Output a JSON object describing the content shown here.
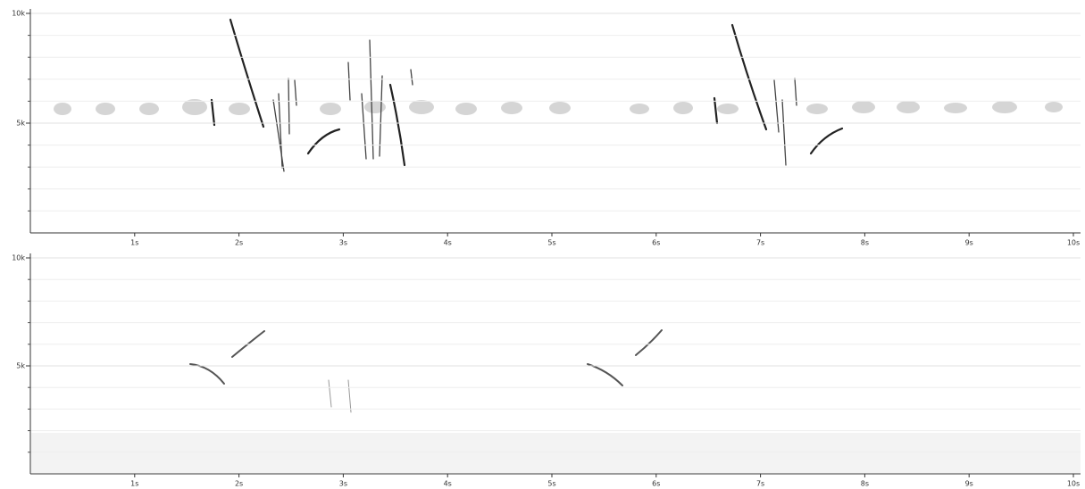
{
  "chart_data": [
    {
      "type": "spectrogram",
      "xlim": [
        0,
        10
      ],
      "ylim": [
        0,
        10000
      ],
      "xticks": [
        {
          "value": 1,
          "label": "1s"
        },
        {
          "value": 2,
          "label": "2s"
        },
        {
          "value": 3,
          "label": "3s"
        },
        {
          "value": 4,
          "label": "4s"
        },
        {
          "value": 5,
          "label": "5s"
        },
        {
          "value": 6,
          "label": "6s"
        },
        {
          "value": 7,
          "label": "7s"
        },
        {
          "value": 8,
          "label": "8s"
        },
        {
          "value": 9,
          "label": "9s"
        },
        {
          "value": 10,
          "label": "10s"
        }
      ],
      "yticks": [
        {
          "value": 5000,
          "label": "5k"
        },
        {
          "value": 10000,
          "label": "10k"
        }
      ],
      "minor_yticks": [
        1000,
        2000,
        3000,
        4000,
        6000,
        7000,
        8000,
        9000
      ],
      "grid": true
    },
    {
      "type": "spectrogram",
      "xlim": [
        0,
        10
      ],
      "ylim": [
        0,
        10000
      ],
      "xticks": [
        {
          "value": 1,
          "label": "1s"
        },
        {
          "value": 2,
          "label": "2s"
        },
        {
          "value": 3,
          "label": "3s"
        },
        {
          "value": 4,
          "label": "4s"
        },
        {
          "value": 5,
          "label": "5s"
        },
        {
          "value": 6,
          "label": "6s"
        },
        {
          "value": 7,
          "label": "7s"
        },
        {
          "value": 8,
          "label": "8s"
        },
        {
          "value": 9,
          "label": "9s"
        },
        {
          "value": 10,
          "label": "10s"
        }
      ],
      "yticks": [
        {
          "value": 5000,
          "label": "5k"
        },
        {
          "value": 10000,
          "label": "10k"
        }
      ],
      "minor_yticks": [
        1000,
        2000,
        3000,
        4000,
        6000,
        7000,
        8000,
        9000
      ],
      "grid": true
    }
  ]
}
